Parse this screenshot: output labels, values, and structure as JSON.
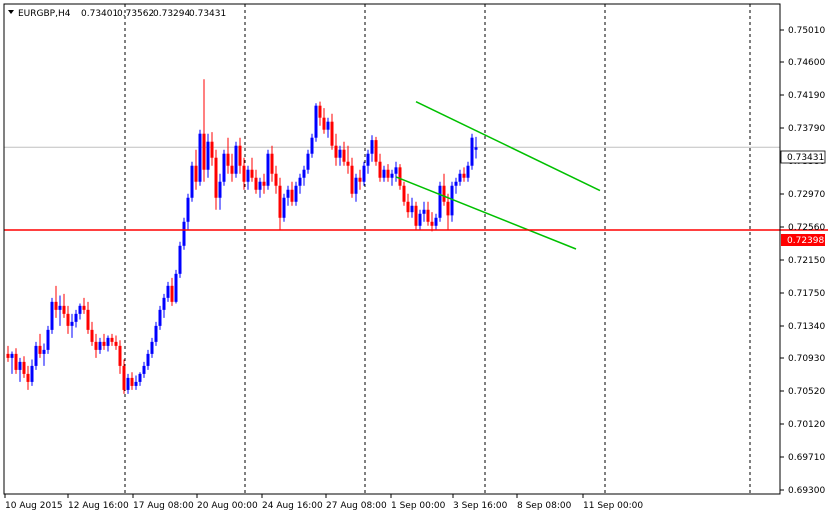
{
  "header": {
    "symbol": "EURGBP,H4",
    "open": "0.73401",
    "high": "0.73562",
    "low": "0.73294",
    "close": "0.73431"
  },
  "colors": {
    "background": "#ffffff",
    "bull": "#0000ff",
    "bear": "#ff0000",
    "channel": "#00c000",
    "support": "#ff0000",
    "current_price_bg": "#ffffff",
    "support_price_bg": "#ff0000"
  },
  "chart_data": {
    "type": "candlestick",
    "title": "EURGBP,H4",
    "ylim": [
      0.691,
      0.7522
    ],
    "y_ticks": [
      "0.75010",
      "0.74600",
      "0.74190",
      "0.73790",
      "0.73380",
      "0.72970",
      "0.72560",
      "0.72150",
      "0.71750",
      "0.71340",
      "0.70930",
      "0.70520",
      "0.70120",
      "0.69710",
      "0.69300"
    ],
    "x_ticks": [
      {
        "label": "10 Aug 2015",
        "index": 0
      },
      {
        "label": "12 Aug 16:00",
        "index": 16
      },
      {
        "label": "17 Aug 08:00",
        "index": 26
      },
      {
        "label": "20 Aug 00:00",
        "index": 42
      },
      {
        "label": "24 Aug 16:00",
        "index": 58
      },
      {
        "label": "27 Aug 08:00",
        "index": 74
      },
      {
        "label": "1 Sep 00:00",
        "index": 90
      },
      {
        "label": "3 Sep 16:00",
        "index": 106
      },
      {
        "label": "8 Sep 08:00",
        "index": 122
      },
      {
        "label": "11 Sep 00:00",
        "index": 138
      }
    ],
    "session_separators": [
      20,
      50,
      80,
      110,
      140,
      170,
      200
    ],
    "current_price": "0.73431",
    "support_level": "0.72398",
    "support_value": 0.72398,
    "current_value": 0.73431,
    "channel_lines": [
      {
        "from": [
          102,
          0.74
        ],
        "to": [
          148,
          0.7289
        ]
      },
      {
        "from": [
          97,
          0.7306
        ],
        "to": [
          142,
          0.7216
        ]
      }
    ],
    "ohlc": [
      [
        0.7085,
        0.7095,
        0.7075,
        0.708
      ],
      [
        0.708,
        0.7088,
        0.706,
        0.7085
      ],
      [
        0.7085,
        0.7092,
        0.706,
        0.7065
      ],
      [
        0.7065,
        0.708,
        0.705,
        0.7075
      ],
      [
        0.7075,
        0.7082,
        0.7055,
        0.706
      ],
      [
        0.706,
        0.707,
        0.704,
        0.705
      ],
      [
        0.705,
        0.7078,
        0.7045,
        0.707
      ],
      [
        0.707,
        0.71,
        0.7065,
        0.7095
      ],
      [
        0.7095,
        0.711,
        0.708,
        0.7085
      ],
      [
        0.7085,
        0.7098,
        0.707,
        0.709
      ],
      [
        0.709,
        0.712,
        0.7085,
        0.7115
      ],
      [
        0.7115,
        0.7155,
        0.711,
        0.715
      ],
      [
        0.715,
        0.717,
        0.713,
        0.714
      ],
      [
        0.714,
        0.7158,
        0.712,
        0.7145
      ],
      [
        0.7145,
        0.716,
        0.713,
        0.7135
      ],
      [
        0.7135,
        0.7145,
        0.711,
        0.712
      ],
      [
        0.712,
        0.7135,
        0.7105,
        0.7125
      ],
      [
        0.7125,
        0.714,
        0.7118,
        0.7135
      ],
      [
        0.7135,
        0.7148,
        0.7128,
        0.7145
      ],
      [
        0.7145,
        0.7155,
        0.7135,
        0.714
      ],
      [
        0.714,
        0.715,
        0.711,
        0.7115
      ],
      [
        0.7115,
        0.7125,
        0.7095,
        0.71
      ],
      [
        0.71,
        0.711,
        0.708,
        0.709
      ],
      [
        0.709,
        0.7105,
        0.7085,
        0.71
      ],
      [
        0.71,
        0.711,
        0.709,
        0.7095
      ],
      [
        0.7095,
        0.7108,
        0.7088,
        0.7105
      ],
      [
        0.7105,
        0.711,
        0.7095,
        0.71
      ],
      [
        0.71,
        0.7108,
        0.709,
        0.7095
      ],
      [
        0.7095,
        0.7102,
        0.706,
        0.707
      ],
      [
        0.707,
        0.7078,
        0.7035,
        0.704
      ],
      [
        0.704,
        0.706,
        0.7035,
        0.7055
      ],
      [
        0.7055,
        0.7062,
        0.704,
        0.7045
      ],
      [
        0.7045,
        0.7058,
        0.704,
        0.705
      ],
      [
        0.705,
        0.7062,
        0.7045,
        0.706
      ],
      [
        0.706,
        0.7075,
        0.7055,
        0.707
      ],
      [
        0.707,
        0.709,
        0.7065,
        0.7085
      ],
      [
        0.7085,
        0.7105,
        0.708,
        0.71
      ],
      [
        0.71,
        0.7125,
        0.7095,
        0.712
      ],
      [
        0.712,
        0.7145,
        0.7115,
        0.714
      ],
      [
        0.714,
        0.716,
        0.713,
        0.7155
      ],
      [
        0.7155,
        0.7175,
        0.715,
        0.717
      ],
      [
        0.717,
        0.718,
        0.7145,
        0.715
      ],
      [
        0.715,
        0.719,
        0.7148,
        0.7185
      ],
      [
        0.7185,
        0.7225,
        0.718,
        0.722
      ],
      [
        0.722,
        0.7255,
        0.7215,
        0.725
      ],
      [
        0.725,
        0.7285,
        0.724,
        0.728
      ],
      [
        0.728,
        0.7325,
        0.7275,
        0.732
      ],
      [
        0.732,
        0.734,
        0.729,
        0.73
      ],
      [
        0.73,
        0.7365,
        0.7295,
        0.736
      ],
      [
        0.736,
        0.7428,
        0.73,
        0.7315
      ],
      [
        0.7315,
        0.736,
        0.7305,
        0.735
      ],
      [
        0.735,
        0.7362,
        0.732,
        0.733
      ],
      [
        0.733,
        0.734,
        0.7265,
        0.728
      ],
      [
        0.728,
        0.731,
        0.7265,
        0.73
      ],
      [
        0.73,
        0.734,
        0.7295,
        0.7335
      ],
      [
        0.7335,
        0.7355,
        0.731,
        0.732
      ],
      [
        0.732,
        0.7335,
        0.73,
        0.731
      ],
      [
        0.731,
        0.735,
        0.7305,
        0.7345
      ],
      [
        0.7345,
        0.7355,
        0.731,
        0.732
      ],
      [
        0.732,
        0.733,
        0.729,
        0.73
      ],
      [
        0.73,
        0.732,
        0.729,
        0.7315
      ],
      [
        0.7315,
        0.733,
        0.73,
        0.7305
      ],
      [
        0.7305,
        0.7315,
        0.7285,
        0.729
      ],
      [
        0.729,
        0.7305,
        0.728,
        0.73
      ],
      [
        0.73,
        0.731,
        0.7285,
        0.7295
      ],
      [
        0.7295,
        0.734,
        0.729,
        0.7335
      ],
      [
        0.7335,
        0.7345,
        0.73,
        0.731
      ],
      [
        0.731,
        0.732,
        0.7285,
        0.7295
      ],
      [
        0.7295,
        0.7305,
        0.724,
        0.7255
      ],
      [
        0.7255,
        0.7285,
        0.725,
        0.728
      ],
      [
        0.728,
        0.7295,
        0.727,
        0.729
      ],
      [
        0.729,
        0.73,
        0.727,
        0.7275
      ],
      [
        0.7275,
        0.73,
        0.727,
        0.7295
      ],
      [
        0.7295,
        0.731,
        0.7285,
        0.7305
      ],
      [
        0.7305,
        0.732,
        0.7295,
        0.7315
      ],
      [
        0.7315,
        0.734,
        0.731,
        0.7335
      ],
      [
        0.7335,
        0.736,
        0.733,
        0.7355
      ],
      [
        0.7355,
        0.7398,
        0.735,
        0.7395
      ],
      [
        0.7395,
        0.74,
        0.737,
        0.738
      ],
      [
        0.738,
        0.7392,
        0.736,
        0.7365
      ],
      [
        0.7365,
        0.738,
        0.7355,
        0.7375
      ],
      [
        0.7375,
        0.7385,
        0.734,
        0.7345
      ],
      [
        0.7345,
        0.736,
        0.732,
        0.733
      ],
      [
        0.733,
        0.7345,
        0.732,
        0.734
      ],
      [
        0.734,
        0.735,
        0.732,
        0.7325
      ],
      [
        0.7325,
        0.7345,
        0.731,
        0.732
      ],
      [
        0.732,
        0.733,
        0.728,
        0.7285
      ],
      [
        0.7285,
        0.731,
        0.7275,
        0.7305
      ],
      [
        0.7305,
        0.7315,
        0.729,
        0.73
      ],
      [
        0.73,
        0.7325,
        0.7295,
        0.732
      ],
      [
        0.732,
        0.734,
        0.731,
        0.7335
      ],
      [
        0.7335,
        0.7358,
        0.7325,
        0.7352
      ],
      [
        0.7352,
        0.7356,
        0.732,
        0.7325
      ],
      [
        0.7325,
        0.7335,
        0.73,
        0.7305
      ],
      [
        0.7305,
        0.732,
        0.73,
        0.7315
      ],
      [
        0.7315,
        0.7322,
        0.73,
        0.7305
      ],
      [
        0.7305,
        0.7315,
        0.7295,
        0.731
      ],
      [
        0.731,
        0.7325,
        0.73,
        0.7318
      ],
      [
        0.7318,
        0.7322,
        0.729,
        0.7295
      ],
      [
        0.7295,
        0.73,
        0.727,
        0.7275
      ],
      [
        0.7275,
        0.7285,
        0.7255,
        0.7262
      ],
      [
        0.7262,
        0.728,
        0.7255,
        0.727
      ],
      [
        0.727,
        0.7275,
        0.724,
        0.7245
      ],
      [
        0.7245,
        0.7265,
        0.724,
        0.726
      ],
      [
        0.726,
        0.7275,
        0.725,
        0.7265
      ],
      [
        0.7265,
        0.7275,
        0.7245,
        0.725
      ],
      [
        0.725,
        0.7262,
        0.7238,
        0.7245
      ],
      [
        0.7245,
        0.726,
        0.724,
        0.7255
      ],
      [
        0.7255,
        0.73,
        0.725,
        0.7295
      ],
      [
        0.7295,
        0.731,
        0.727,
        0.7275
      ],
      [
        0.7275,
        0.7285,
        0.724,
        0.7258
      ],
      [
        0.7258,
        0.73,
        0.725,
        0.7295
      ],
      [
        0.7295,
        0.7305,
        0.7285,
        0.73
      ],
      [
        0.73,
        0.7315,
        0.7295,
        0.731
      ],
      [
        0.731,
        0.7318,
        0.73,
        0.7305
      ],
      [
        0.7305,
        0.7325,
        0.73,
        0.732
      ],
      [
        0.732,
        0.736,
        0.7315,
        0.7355
      ],
      [
        0.734,
        0.7356,
        0.7329,
        0.7343
      ]
    ]
  }
}
